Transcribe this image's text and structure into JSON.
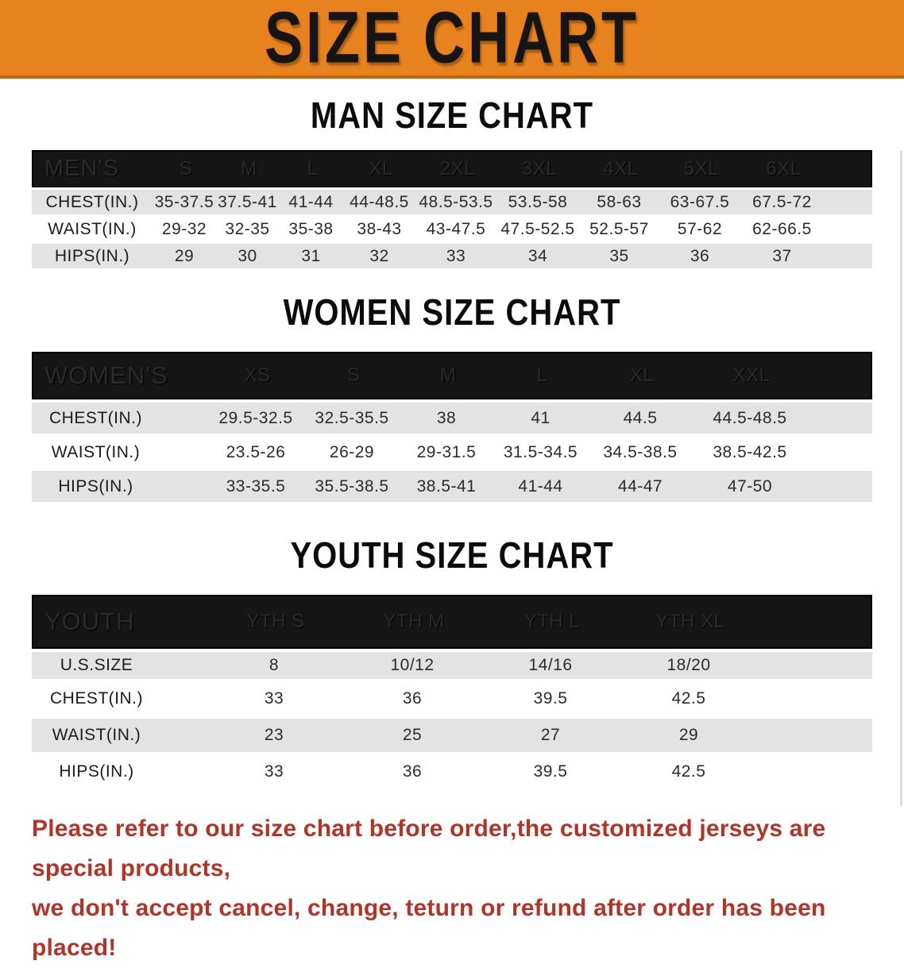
{
  "banner": {
    "title": "SIZE CHART"
  },
  "colors": {
    "banner_bg": "#E8821F",
    "banner_border": "#C0650F",
    "header_bar_bg": "#161616",
    "row_alt_gray": "#E3E3E3",
    "disclaimer_red": "#B23328"
  },
  "sections": [
    {
      "heading": "MAN SIZE CHART",
      "label": "MEN'S",
      "columns": [
        "S",
        "M",
        "L",
        "XL",
        "2XL",
        "3XL",
        "4XL",
        "5XL",
        "6XL"
      ],
      "rows": [
        {
          "label": "CHEST(IN.)",
          "values": [
            "35-37.5",
            "37.5-41",
            "41-44",
            "44-48.5",
            "48.5-53.5",
            "53.5-58",
            "58-63",
            "63-67.5",
            "67.5-72"
          ]
        },
        {
          "label": "WAIST(IN.)",
          "values": [
            "29-32",
            "32-35",
            "35-38",
            "38-43",
            "43-47.5",
            "47.5-52.5",
            "52.5-57",
            "57-62",
            "62-66.5"
          ]
        },
        {
          "label": "HIPS(IN.)",
          "values": [
            "29",
            "30",
            "31",
            "32",
            "33",
            "34",
            "35",
            "36",
            "37"
          ]
        }
      ]
    },
    {
      "heading": "WOMEN SIZE CHART",
      "label": "WOMEN'S",
      "columns": [
        "XS",
        "S",
        "M",
        "L",
        "XL",
        "XXL"
      ],
      "rows": [
        {
          "label": "CHEST(IN.)",
          "values": [
            "29.5-32.5",
            "32.5-35.5",
            "38",
            "41",
            "44.5",
            "44.5-48.5"
          ]
        },
        {
          "label": "WAIST(IN.)",
          "values": [
            "23.5-26",
            "26-29",
            "29-31.5",
            "31.5-34.5",
            "34.5-38.5",
            "38.5-42.5"
          ]
        },
        {
          "label": "HIPS(IN.)",
          "values": [
            "33-35.5",
            "35.5-38.5",
            "38.5-41",
            "41-44",
            "44-47",
            "47-50"
          ]
        }
      ]
    },
    {
      "heading": "YOUTH SIZE CHART",
      "label": "YOUTH",
      "columns": [
        "YTH S",
        "YTH M",
        "YTH L",
        "YTH XL"
      ],
      "rows": [
        {
          "label": "U.S.SIZE",
          "values": [
            "8",
            "10/12",
            "14/16",
            "18/20"
          ]
        },
        {
          "label": "CHEST(IN.)",
          "values": [
            "33",
            "36",
            "39.5",
            "42.5"
          ]
        },
        {
          "label": "WAIST(IN.)",
          "values": [
            "23",
            "25",
            "27",
            "29"
          ]
        },
        {
          "label": "HIPS(IN.)",
          "values": [
            "33",
            "36",
            "39.5",
            "42.5"
          ]
        }
      ]
    }
  ],
  "disclaimer": {
    "line1": "Please refer to our size chart before order,the customized jerseys are special products,",
    "line2": "we don't accept cancel, change, teturn or refund after order has been placed!"
  }
}
